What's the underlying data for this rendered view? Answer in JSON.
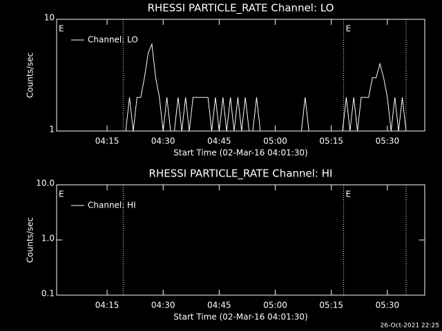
{
  "chart_data": [
    {
      "type": "line",
      "title": "RHESSI PARTICLE_RATE Channel: LO",
      "x_label": "Start Time (02-Mar-16 04:01:30)",
      "y_label": "Counts/sec",
      "log_y": true,
      "legend": "upper left",
      "color": "#ffffff",
      "xlim": [
        1.5,
        100
      ],
      "ylim": [
        1,
        10
      ],
      "yticks": [
        1,
        10
      ],
      "xticks": [
        {
          "value": 15,
          "label": "04:15"
        },
        {
          "value": 30,
          "label": "04:30"
        },
        {
          "value": 45,
          "label": "04:45"
        },
        {
          "value": 60,
          "label": "05:00"
        },
        {
          "value": 75,
          "label": "05:15"
        },
        {
          "value": 90,
          "label": "05:30"
        }
      ],
      "events": [
        19.3,
        78.3,
        95
      ],
      "event_labels": [
        {
          "x": 1.5,
          "text": "E"
        },
        {
          "x": 78.3,
          "text": "E"
        }
      ],
      "series": [
        {
          "name": "Channel: LO",
          "color": "#ffffff",
          "x": [
            2,
            3,
            4,
            5,
            6,
            7,
            8,
            9,
            10,
            11,
            12,
            13,
            14,
            15,
            16,
            17,
            18,
            19,
            20,
            21,
            22,
            23,
            24,
            25,
            26,
            27,
            28,
            29,
            30,
            31,
            32,
            33,
            34,
            35,
            36,
            37,
            38,
            39,
            40,
            41,
            42,
            43,
            44,
            45,
            46,
            47,
            48,
            49,
            50,
            51,
            52,
            53,
            54,
            55,
            56,
            57,
            58,
            59,
            60,
            61,
            62,
            63,
            64,
            65,
            66,
            67,
            68,
            69,
            70,
            71,
            72,
            73,
            74,
            75,
            76,
            77,
            78,
            79,
            80,
            81,
            82,
            83,
            84,
            85,
            86,
            87,
            88,
            89,
            90,
            91,
            92,
            93,
            94,
            95,
            96,
            97,
            98,
            99
          ],
          "values": [
            1,
            1,
            1,
            1,
            1,
            1,
            1,
            1,
            1,
            1,
            1,
            1,
            1,
            1,
            1,
            1,
            1,
            1,
            1,
            2,
            1,
            2,
            2,
            3,
            5,
            6,
            3,
            2,
            1,
            2,
            1,
            1,
            2,
            1,
            2,
            1,
            2,
            2,
            2,
            2,
            2,
            1,
            2,
            1,
            2,
            1,
            2,
            1,
            2,
            1,
            2,
            1,
            1,
            2,
            1,
            1,
            1,
            1,
            1,
            1,
            1,
            1,
            1,
            1,
            1,
            1,
            2,
            1,
            1,
            1,
            1,
            1,
            1,
            1,
            1,
            1,
            1,
            2,
            1,
            2,
            1,
            2,
            2,
            2,
            3,
            3,
            4,
            3,
            2,
            1,
            2,
            1,
            2,
            1,
            1,
            1,
            1,
            1
          ]
        }
      ]
    },
    {
      "type": "line",
      "title": "RHESSI PARTICLE_RATE Channel: HI",
      "x_label": "Start Time (02-Mar-16 04:01:30)",
      "y_label": "Counts/sec",
      "log_y": true,
      "legend": "upper left",
      "color": "#ffffff",
      "xlim": [
        1.5,
        100
      ],
      "ylim": [
        0.1,
        10
      ],
      "yticks": [
        0.1,
        {
          "value": 1,
          "label": "1.0"
        },
        {
          "value": 10,
          "label": "10.0"
        }
      ],
      "xticks": [
        {
          "value": 15,
          "label": "04:15"
        },
        {
          "value": 30,
          "label": "04:30"
        },
        {
          "value": 45,
          "label": "04:45"
        },
        {
          "value": 60,
          "label": "05:00"
        },
        {
          "value": 75,
          "label": "05:15"
        },
        {
          "value": 90,
          "label": "05:30"
        }
      ],
      "events": [
        19.3,
        78.3,
        95
      ],
      "event_labels": [
        {
          "x": 1.5,
          "text": "E"
        },
        {
          "x": 78.3,
          "text": "E"
        }
      ],
      "series": [
        {
          "name": "Channel: HI",
          "color": "#ffffff",
          "x": [],
          "values": []
        }
      ]
    }
  ],
  "footer": "26-Oct-2021 22:25"
}
